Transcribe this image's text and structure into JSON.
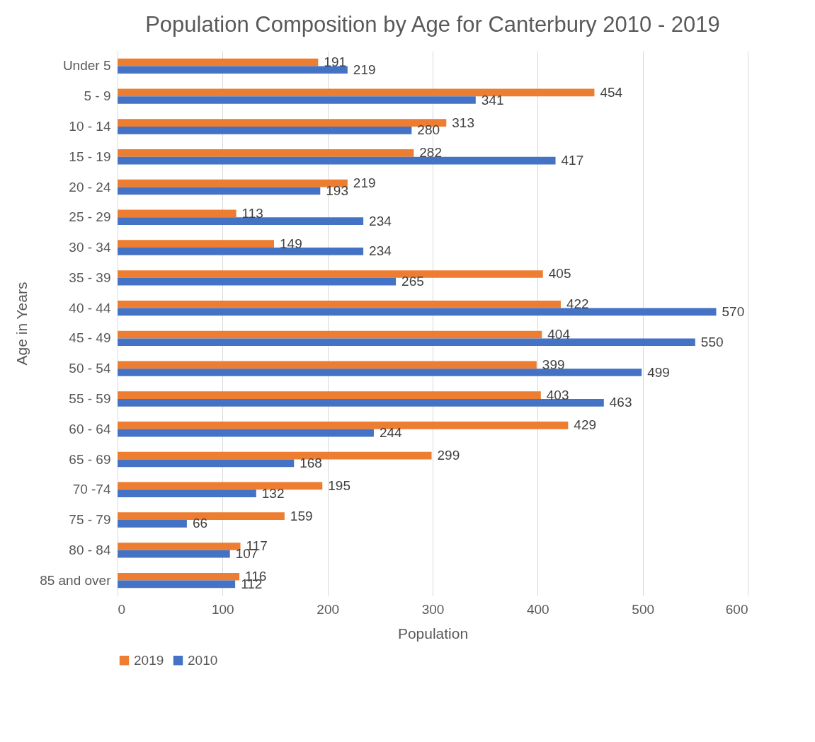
{
  "chart_data": {
    "type": "bar",
    "orientation": "horizontal",
    "title": "Population Composition by Age for Canterbury 2010 - 2019",
    "xlabel": "Population",
    "ylabel": "Age in Years",
    "categories": [
      "Under 5",
      "5 - 9",
      "10 - 14",
      "15 - 19",
      "20 - 24",
      "25 - 29",
      "30 - 34",
      "35 - 39",
      "40 - 44",
      "45 - 49",
      "50 - 54",
      "55 - 59",
      "60 - 64",
      "65 - 69",
      "70 -74",
      "75 - 79",
      "80 - 84",
      "85 and over"
    ],
    "series": [
      {
        "name": "2019",
        "color": "#ed7d31",
        "values": [
          191,
          454,
          313,
          282,
          219,
          113,
          149,
          405,
          422,
          404,
          399,
          403,
          429,
          299,
          195,
          159,
          117,
          116
        ]
      },
      {
        "name": "2010",
        "color": "#4472c4",
        "values": [
          219,
          341,
          280,
          417,
          193,
          234,
          234,
          265,
          570,
          550,
          499,
          463,
          244,
          168,
          132,
          66,
          107,
          112
        ]
      }
    ],
    "xlim": [
      0,
      600
    ],
    "xticks": [
      0,
      100,
      200,
      300,
      400,
      500,
      600
    ],
    "grid": "x",
    "legend": "bottom",
    "data_labels": true
  }
}
